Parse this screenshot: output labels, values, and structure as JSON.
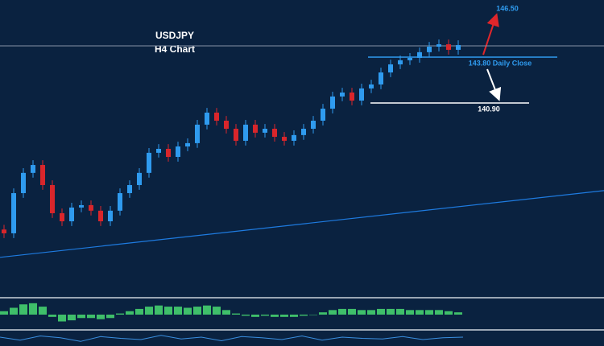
{
  "chart_data": {
    "type": "candlestick",
    "title": "USDJPY",
    "subtitle": "H4 Chart",
    "ylim": [
      128.69,
      147.41
    ],
    "up_color": "#2f9bef",
    "down_color": "#d9262b",
    "open": [
      132.9,
      132.66,
      135.2,
      136.48,
      136.98,
      135.71,
      133.93,
      133.42,
      134.29,
      134.44,
      134.09,
      133.42,
      134.09,
      135.2,
      135.71,
      136.48,
      137.75,
      138.0,
      137.49,
      138.15,
      138.36,
      139.53,
      140.29,
      139.78,
      139.27,
      138.51,
      139.53,
      139.02,
      139.27,
      138.76,
      138.51,
      138.87,
      139.27,
      139.78,
      140.54,
      141.31,
      141.56,
      141.05,
      141.82,
      142.07,
      142.83,
      143.34,
      143.6,
      143.75,
      144.11,
      144.46,
      144.61,
      144.26
    ],
    "high": [
      133.2,
      135.5,
      136.78,
      137.28,
      137.28,
      136.01,
      134.23,
      134.59,
      134.74,
      134.74,
      134.39,
      134.39,
      135.5,
      136.01,
      136.78,
      138.05,
      138.3,
      138.3,
      138.45,
      138.66,
      139.83,
      140.59,
      140.59,
      140.08,
      139.57,
      139.83,
      139.83,
      139.57,
      139.57,
      139.06,
      139.17,
      139.57,
      140.08,
      140.84,
      141.61,
      141.86,
      141.86,
      142.12,
      142.37,
      143.13,
      143.64,
      143.9,
      144.05,
      144.41,
      144.76,
      144.91,
      144.91,
      144.86
    ],
    "low": [
      132.36,
      132.36,
      134.9,
      136.18,
      135.41,
      133.63,
      133.12,
      133.12,
      133.99,
      133.79,
      133.12,
      133.12,
      133.79,
      134.9,
      135.41,
      136.18,
      137.45,
      137.19,
      137.19,
      137.85,
      138.06,
      139.23,
      139.48,
      138.97,
      138.21,
      138.21,
      138.72,
      138.72,
      138.46,
      138.21,
      138.21,
      138.57,
      138.97,
      139.48,
      140.24,
      141.01,
      140.75,
      140.75,
      141.52,
      141.77,
      142.53,
      143.04,
      143.3,
      143.45,
      143.81,
      144.16,
      143.96,
      143.96
    ],
    "close": [
      132.66,
      135.2,
      136.48,
      136.98,
      135.71,
      133.93,
      133.42,
      134.29,
      134.44,
      134.09,
      133.42,
      134.09,
      135.2,
      135.71,
      136.48,
      137.75,
      138.0,
      137.49,
      138.15,
      138.36,
      139.53,
      140.29,
      139.78,
      139.27,
      138.51,
      139.53,
      139.02,
      139.27,
      138.76,
      138.51,
      138.87,
      139.27,
      139.78,
      140.54,
      141.31,
      141.56,
      141.05,
      141.82,
      142.07,
      142.83,
      143.34,
      143.6,
      143.75,
      144.11,
      144.46,
      144.61,
      144.26,
      144.56
    ],
    "price_line": 144.51,
    "trendline": {
      "color": "#1e7be0",
      "values": [
        131.14,
        135.36
      ]
    },
    "annotations": [
      {
        "text": "146.50",
        "value": 146.5,
        "color": "#2f9bef"
      },
      {
        "text": "143.80 Daily Close",
        "value": 143.8,
        "color": "#2f9bef"
      },
      {
        "text": "140.90",
        "value": 140.9,
        "color": "#ffffff"
      }
    ],
    "histogram": {
      "color": "#3fbf6a",
      "ylim": [
        -1.2,
        1.2
      ],
      "values": [
        0.3,
        0.6,
        0.9,
        1.0,
        0.7,
        -0.2,
        -0.6,
        -0.5,
        -0.3,
        -0.3,
        -0.4,
        -0.3,
        0.1,
        0.3,
        0.5,
        0.7,
        0.8,
        0.7,
        0.7,
        0.6,
        0.7,
        0.8,
        0.7,
        0.4,
        0.1,
        -0.1,
        -0.2,
        -0.1,
        -0.2,
        -0.2,
        -0.2,
        -0.1,
        0.0,
        0.2,
        0.4,
        0.5,
        0.5,
        0.4,
        0.4,
        0.5,
        0.5,
        0.5,
        0.4,
        0.4,
        0.4,
        0.4,
        0.3,
        0.2
      ]
    },
    "oscillator": {
      "color": "#3a8fe0",
      "ylim": [
        -1,
        1
      ],
      "values": [
        0.2,
        -0.3,
        0.4,
        0.1,
        -0.5,
        0.3,
        0.0,
        -0.2,
        0.5,
        -0.1,
        0.2,
        -0.4,
        0.3,
        0.1,
        -0.2,
        0.4,
        -0.3,
        0.2,
        0.0,
        -0.1,
        0.3,
        -0.2,
        0.1,
        0.2
      ]
    }
  }
}
